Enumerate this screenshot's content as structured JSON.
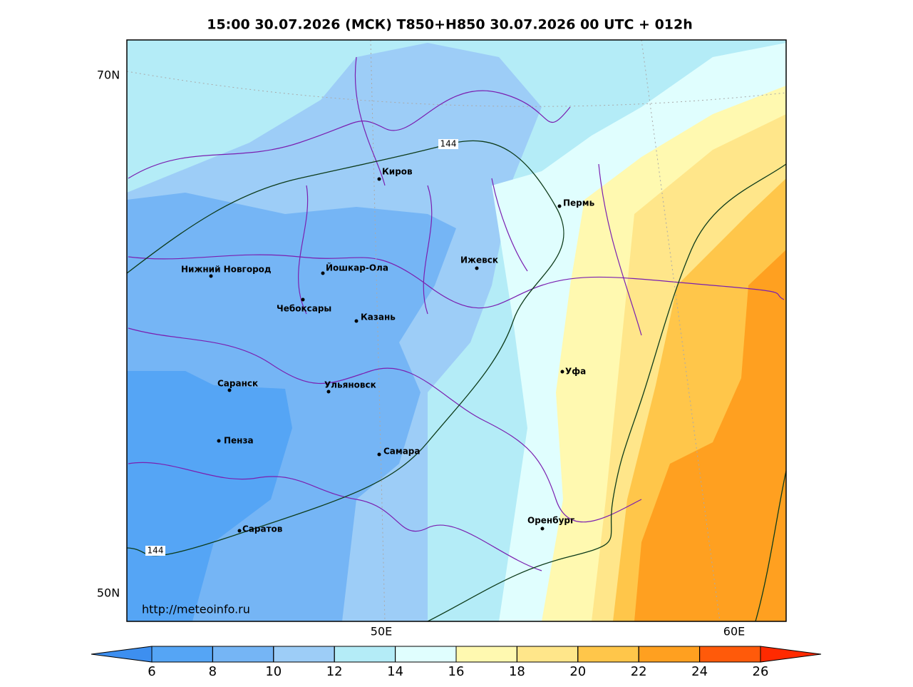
{
  "title": "15:00 30.07.2026 (МСК) T850+H850 30.07.2026 00 UTC + 012h",
  "lat_labels": [
    "70N",
    "50N"
  ],
  "lon_labels": [
    "50E",
    "60E"
  ],
  "contour_labels": [
    "144",
    "144"
  ],
  "cities": [
    "Киров",
    "Пермь",
    "Нижний Новгород",
    "Йошкар-Ола",
    "Ижевск",
    "Чебоксары",
    "Казань",
    "Ульяновск",
    "Саранск",
    "Пенза",
    "Самара",
    "Уфа",
    "Саратов",
    "Оренбург"
  ],
  "credit": "http://meteoinfo.ru",
  "colorbar": {
    "ticks": [
      6,
      8,
      10,
      12,
      14,
      16,
      18,
      20,
      22,
      24,
      26
    ],
    "colors": [
      "#3d8ff0",
      "#55a5f5",
      "#75b5f5",
      "#9dcdf7",
      "#b4ecf7",
      "#e0fefe",
      "#fff9b0",
      "#ffe68a",
      "#ffc64a",
      "#ffa020",
      "#ff5a0a",
      "#ff2a00"
    ]
  }
}
